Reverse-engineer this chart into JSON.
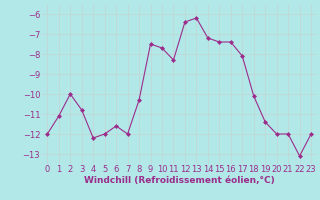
{
  "x": [
    0,
    1,
    2,
    3,
    4,
    5,
    6,
    7,
    8,
    9,
    10,
    11,
    12,
    13,
    14,
    15,
    16,
    17,
    18,
    19,
    20,
    21,
    22,
    23
  ],
  "y": [
    -12.0,
    -11.1,
    -10.0,
    -10.8,
    -12.2,
    -12.0,
    -11.6,
    -12.0,
    -10.3,
    -7.5,
    -7.7,
    -8.3,
    -6.4,
    -6.2,
    -7.2,
    -7.4,
    -7.4,
    -8.1,
    -10.1,
    -11.4,
    -12.0,
    -12.0,
    -13.1,
    -12.0
  ],
  "line_color": "#9b2d8b",
  "marker": "D",
  "marker_size": 2,
  "bg_color": "#b2e8e8",
  "grid_color": "#c0d8d8",
  "xlabel": "Windchill (Refroidissement éolien,°C)",
  "xlabel_fontsize": 6.5,
  "tick_fontsize": 6,
  "ylim": [
    -13.5,
    -5.5
  ],
  "yticks": [
    -6,
    -7,
    -8,
    -9,
    -10,
    -11,
    -12,
    -13
  ],
  "xlim": [
    -0.5,
    23.5
  ],
  "xticks": [
    0,
    1,
    2,
    3,
    4,
    5,
    6,
    7,
    8,
    9,
    10,
    11,
    12,
    13,
    14,
    15,
    16,
    17,
    18,
    19,
    20,
    21,
    22,
    23
  ]
}
